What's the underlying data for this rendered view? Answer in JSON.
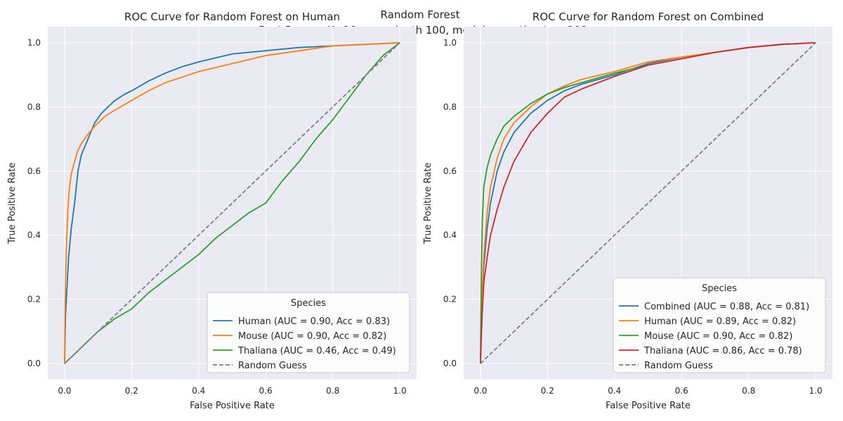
{
  "suptitle": [
    "Random Forest",
    "Best Params K=10 ,max_depth 100, model__n_estimators 200"
  ],
  "colors": {
    "background": "#eaeaf2",
    "grid": "#ffffff",
    "blue": "#1f77b4",
    "orange": "#ff7f0e",
    "green": "#2ca02c",
    "red": "#d62728",
    "gray": "#7f7f7f"
  },
  "chart_data": [
    {
      "type": "line",
      "title": "ROC Curve for Random Forest on Human",
      "xlabel": "False Positive Rate",
      "ylabel": "True Positive Rate",
      "xlim": [
        -0.05,
        1.05
      ],
      "ylim": [
        -0.05,
        1.05
      ],
      "xticks": [
        "0.0",
        "0.2",
        "0.4",
        "0.6",
        "0.8",
        "1.0"
      ],
      "yticks": [
        "0.0",
        "0.2",
        "0.4",
        "0.6",
        "0.8",
        "1.0"
      ],
      "grid": true,
      "legend": {
        "title": "Species",
        "position": "lower-right"
      },
      "series": [
        {
          "name": "Human (AUC = 0.90, Acc = 0.83)",
          "color": "#1f77b4",
          "style": "solid",
          "x": [
            0,
            0.003,
            0.008,
            0.012,
            0.02,
            0.03,
            0.04,
            0.05,
            0.07,
            0.09,
            0.11,
            0.13,
            0.15,
            0.18,
            0.2,
            0.25,
            0.3,
            0.35,
            0.4,
            0.5,
            0.6,
            0.7,
            0.8,
            0.9,
            1.0
          ],
          "y": [
            0,
            0.15,
            0.25,
            0.33,
            0.42,
            0.5,
            0.6,
            0.65,
            0.7,
            0.75,
            0.78,
            0.8,
            0.82,
            0.84,
            0.85,
            0.88,
            0.905,
            0.925,
            0.94,
            0.965,
            0.975,
            0.985,
            0.99,
            0.995,
            1.0
          ]
        },
        {
          "name": "Mouse (AUC = 0.90, Acc = 0.82)",
          "color": "#ff7f0e",
          "style": "solid",
          "x": [
            0,
            0.002,
            0.005,
            0.01,
            0.015,
            0.02,
            0.03,
            0.04,
            0.05,
            0.07,
            0.09,
            0.12,
            0.15,
            0.2,
            0.25,
            0.3,
            0.4,
            0.5,
            0.6,
            0.7,
            0.8,
            0.9,
            1.0
          ],
          "y": [
            0,
            0.2,
            0.35,
            0.48,
            0.55,
            0.59,
            0.63,
            0.665,
            0.685,
            0.715,
            0.74,
            0.77,
            0.79,
            0.82,
            0.85,
            0.875,
            0.91,
            0.935,
            0.96,
            0.975,
            0.99,
            0.995,
            1.0
          ]
        },
        {
          "name": "Thaliana (AUC = 0.46, Acc = 0.49)",
          "color": "#2ca02c",
          "style": "solid",
          "x": [
            0,
            0.02,
            0.05,
            0.08,
            0.1,
            0.15,
            0.2,
            0.25,
            0.3,
            0.35,
            0.4,
            0.45,
            0.5,
            0.55,
            0.6,
            0.65,
            0.7,
            0.75,
            0.8,
            0.85,
            0.9,
            0.95,
            1.0
          ],
          "y": [
            0,
            0.02,
            0.05,
            0.08,
            0.1,
            0.14,
            0.17,
            0.22,
            0.26,
            0.3,
            0.34,
            0.39,
            0.43,
            0.47,
            0.5,
            0.57,
            0.63,
            0.7,
            0.76,
            0.83,
            0.9,
            0.96,
            1.0
          ]
        },
        {
          "name": "Random Guess",
          "color": "#7f7f7f",
          "style": "dashed",
          "x": [
            0,
            1
          ],
          "y": [
            0,
            1
          ]
        }
      ]
    },
    {
      "type": "line",
      "title": "ROC Curve for Random Forest on Combined",
      "xlabel": "False Positive Rate",
      "ylabel": "True Positive Rate",
      "xlim": [
        -0.05,
        1.05
      ],
      "ylim": [
        -0.05,
        1.05
      ],
      "xticks": [
        "0.0",
        "0.2",
        "0.4",
        "0.6",
        "0.8",
        "1.0"
      ],
      "yticks": [
        "0.0",
        "0.2",
        "0.4",
        "0.6",
        "0.8",
        "1.0"
      ],
      "grid": true,
      "legend": {
        "title": "Species",
        "position": "lower-right"
      },
      "series": [
        {
          "name": "Combined (AUC = 0.88, Acc = 0.81)",
          "color": "#1f77b4",
          "style": "solid",
          "x": [
            0,
            0.005,
            0.01,
            0.02,
            0.03,
            0.05,
            0.07,
            0.1,
            0.15,
            0.2,
            0.25,
            0.3,
            0.4,
            0.5,
            0.6,
            0.7,
            0.8,
            0.9,
            1.0
          ],
          "y": [
            0,
            0.2,
            0.3,
            0.42,
            0.5,
            0.6,
            0.66,
            0.72,
            0.78,
            0.82,
            0.85,
            0.87,
            0.9,
            0.935,
            0.955,
            0.97,
            0.985,
            0.995,
            1.0
          ]
        },
        {
          "name": "Human (AUC = 0.89, Acc = 0.82)",
          "color": "#ff7f0e",
          "style": "solid",
          "x": [
            0,
            0.005,
            0.01,
            0.02,
            0.03,
            0.05,
            0.07,
            0.1,
            0.15,
            0.2,
            0.25,
            0.3,
            0.4,
            0.5,
            0.6,
            0.7,
            0.8,
            0.9,
            1.0
          ],
          "y": [
            0,
            0.22,
            0.33,
            0.47,
            0.55,
            0.64,
            0.7,
            0.75,
            0.8,
            0.84,
            0.865,
            0.885,
            0.91,
            0.94,
            0.955,
            0.97,
            0.985,
            0.995,
            1.0
          ]
        },
        {
          "name": "Mouse (AUC = 0.90, Acc = 0.82)",
          "color": "#2ca02c",
          "style": "solid",
          "x": [
            0,
            0.003,
            0.006,
            0.01,
            0.02,
            0.03,
            0.05,
            0.07,
            0.1,
            0.15,
            0.2,
            0.25,
            0.3,
            0.4,
            0.5,
            0.6,
            0.7,
            0.8,
            0.9,
            1.0
          ],
          "y": [
            0,
            0.3,
            0.45,
            0.55,
            0.61,
            0.65,
            0.7,
            0.74,
            0.77,
            0.81,
            0.84,
            0.86,
            0.875,
            0.905,
            0.93,
            0.95,
            0.97,
            0.985,
            0.995,
            1.0
          ]
        },
        {
          "name": "Thaliana (AUC = 0.86, Acc = 0.78)",
          "color": "#d62728",
          "style": "solid",
          "x": [
            0,
            0.005,
            0.01,
            0.02,
            0.03,
            0.05,
            0.07,
            0.1,
            0.15,
            0.2,
            0.25,
            0.3,
            0.35,
            0.4,
            0.5,
            0.6,
            0.7,
            0.8,
            0.9,
            1.0
          ],
          "y": [
            0,
            0.15,
            0.25,
            0.33,
            0.4,
            0.48,
            0.55,
            0.63,
            0.72,
            0.78,
            0.83,
            0.855,
            0.875,
            0.895,
            0.93,
            0.95,
            0.97,
            0.985,
            0.995,
            1.0
          ]
        },
        {
          "name": "Random Guess",
          "color": "#7f7f7f",
          "style": "dashed",
          "x": [
            0,
            1
          ],
          "y": [
            0,
            1
          ]
        }
      ]
    }
  ]
}
